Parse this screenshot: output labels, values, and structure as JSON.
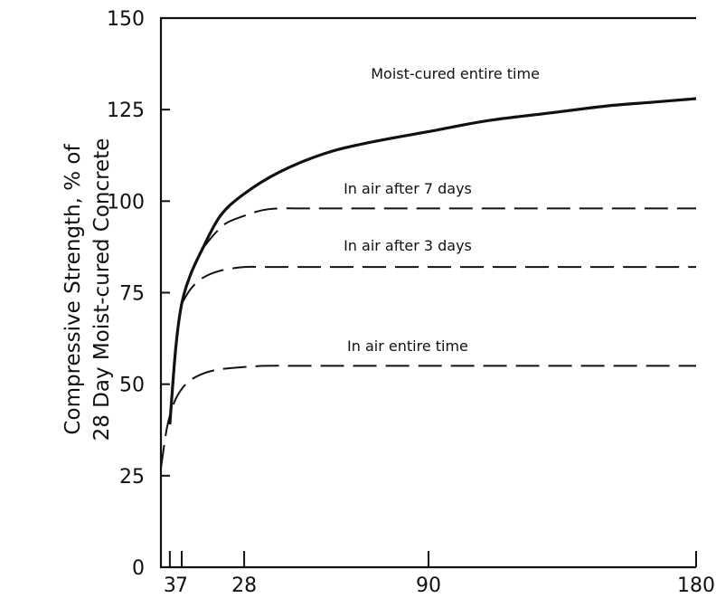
{
  "chart_data": {
    "type": "line",
    "ylabel_lines": [
      "Compressive Strength, % of",
      "28 Day Moist-cured Concrete"
    ],
    "xlabel": "",
    "xlim": [
      0,
      180
    ],
    "ylim": [
      0,
      150
    ],
    "x_ticks": [
      3,
      7,
      28,
      90,
      180
    ],
    "x_tick_labels": [
      "3",
      "7",
      "28",
      "90",
      "180"
    ],
    "y_ticks": [
      0,
      25,
      50,
      75,
      100,
      125,
      150
    ],
    "y_tick_labels": [
      "0",
      "25",
      "50",
      "75",
      "100",
      "125",
      "150"
    ],
    "grid": false,
    "series": [
      {
        "name": "Moist-cured entire time",
        "style": "solid",
        "x": [
          3,
          5,
          7,
          10,
          14,
          20,
          28,
          40,
          55,
          70,
          90,
          110,
          130,
          150,
          165,
          180
        ],
        "y": [
          39,
          60,
          72,
          80,
          87,
          96,
          102,
          108,
          113,
          116,
          119,
          122,
          124,
          126,
          127,
          128
        ]
      },
      {
        "name": "In air after 7 days",
        "style": "dashed",
        "x": [
          14,
          18,
          22,
          28,
          34,
          40,
          50,
          60,
          90,
          130,
          180
        ],
        "y": [
          87,
          91,
          94,
          96,
          97.5,
          98,
          98,
          98,
          98,
          98,
          98
        ]
      },
      {
        "name": "In air after 3 days",
        "style": "dashed",
        "x": [
          7,
          10,
          14,
          20,
          28,
          35,
          45,
          60,
          90,
          130,
          180
        ],
        "y": [
          72,
          76,
          79,
          81,
          82,
          82,
          82,
          82,
          82,
          82,
          82
        ]
      },
      {
        "name": "In air entire time",
        "style": "dashed",
        "x": [
          0,
          2,
          4,
          6,
          9,
          13,
          18,
          25,
          35,
          50,
          90,
          130,
          180
        ],
        "y": [
          27,
          38,
          44,
          47.5,
          50.5,
          52.5,
          53.8,
          54.5,
          55,
          55,
          55,
          55,
          55
        ]
      }
    ]
  }
}
